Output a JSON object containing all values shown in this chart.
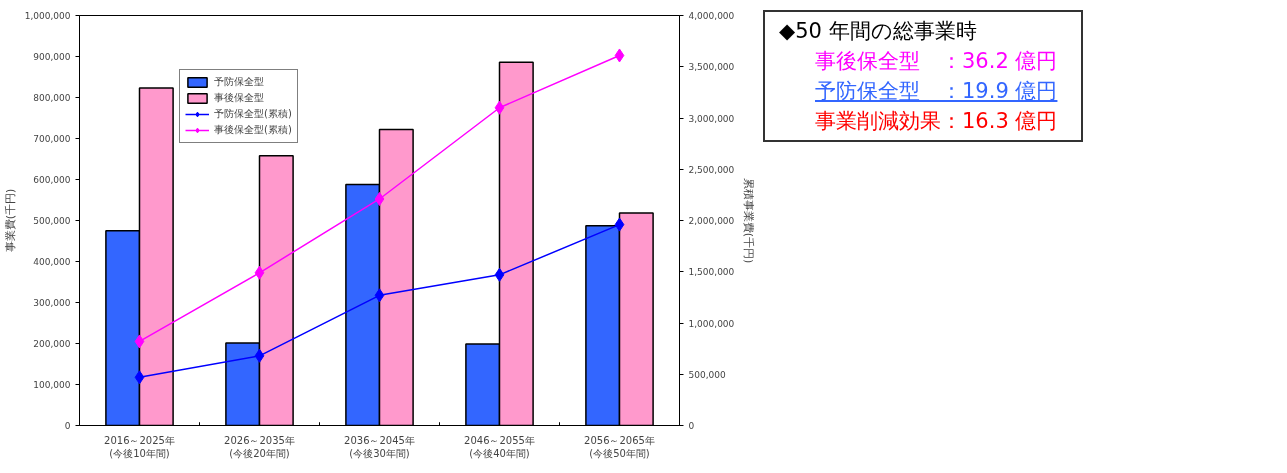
{
  "chart_data": {
    "type": "bar",
    "xlabel": null,
    "ylabel": "事業費(千円)",
    "y2label": "累積事業費(千円)",
    "categories": [
      "2016～2025年\n(今後10年間)",
      "2026～2035年\n(今後20年間)",
      "2036～2045年\n(今後30年間)",
      "2046～2055年\n(今後40年間)",
      "2056～2065年\n(今後50年間)"
    ],
    "series": [
      {
        "name": "予防保全型",
        "color": "#3366ff",
        "values": [
          475000,
          201000,
          588000,
          199000,
          487000
        ]
      },
      {
        "name": "事後保全型",
        "color": "#ff99cc",
        "values": [
          823000,
          658000,
          722000,
          886000,
          518000
        ]
      },
      {
        "name": "予防保全型(累積)",
        "type": "line",
        "axis": "y2",
        "color": "#0000ff",
        "values": [
          470000,
          680000,
          1270000,
          1470000,
          1960000
        ]
      },
      {
        "name": "事後保全型(累積)",
        "type": "line",
        "axis": "y2",
        "color": "#ff00ff",
        "values": [
          820000,
          1490000,
          2210000,
          3100000,
          3610000
        ]
      }
    ],
    "marker": "diamond",
    "line_style": "solid",
    "grid": false,
    "legend": "top left",
    "ylim": [
      0,
      1000000
    ],
    "yticks": [
      0,
      {
        "value": 100000,
        "label": "100,000"
      },
      {
        "value": 200000,
        "label": "200,000"
      },
      {
        "value": 300000,
        "label": "300,000"
      },
      {
        "value": 400000,
        "label": "400,000"
      },
      {
        "value": 500000,
        "label": "500,000"
      },
      {
        "value": 600000,
        "label": "600,000"
      },
      {
        "value": 700000,
        "label": "700,000"
      },
      {
        "value": 800000,
        "label": "800,000"
      },
      {
        "value": 900000,
        "label": "900,000"
      },
      {
        "value": 1000000,
        "label": "1,000,000"
      }
    ],
    "y2lim": [
      0,
      4000000
    ],
    "y2ticks": [
      0,
      {
        "value": 500000,
        "label": "500,000"
      },
      {
        "value": 1000000,
        "label": "1,000,000"
      },
      {
        "value": 1500000,
        "label": "1,500,000"
      },
      {
        "value": 2000000,
        "label": "2,000,000"
      },
      {
        "value": 2500000,
        "label": "2,500,000"
      },
      {
        "value": 3000000,
        "label": "3,000,000"
      },
      {
        "value": 3500000,
        "label": "3,500,000"
      },
      {
        "value": 4000000,
        "label": "4,000,000"
      }
    ],
    "annotations": [
      "◆50 年間の総事業時",
      "事後保全型　：36.2 億円",
      "予防保全型　：19.9 億円",
      "事業削減効果：16.3 億円"
    ]
  }
}
